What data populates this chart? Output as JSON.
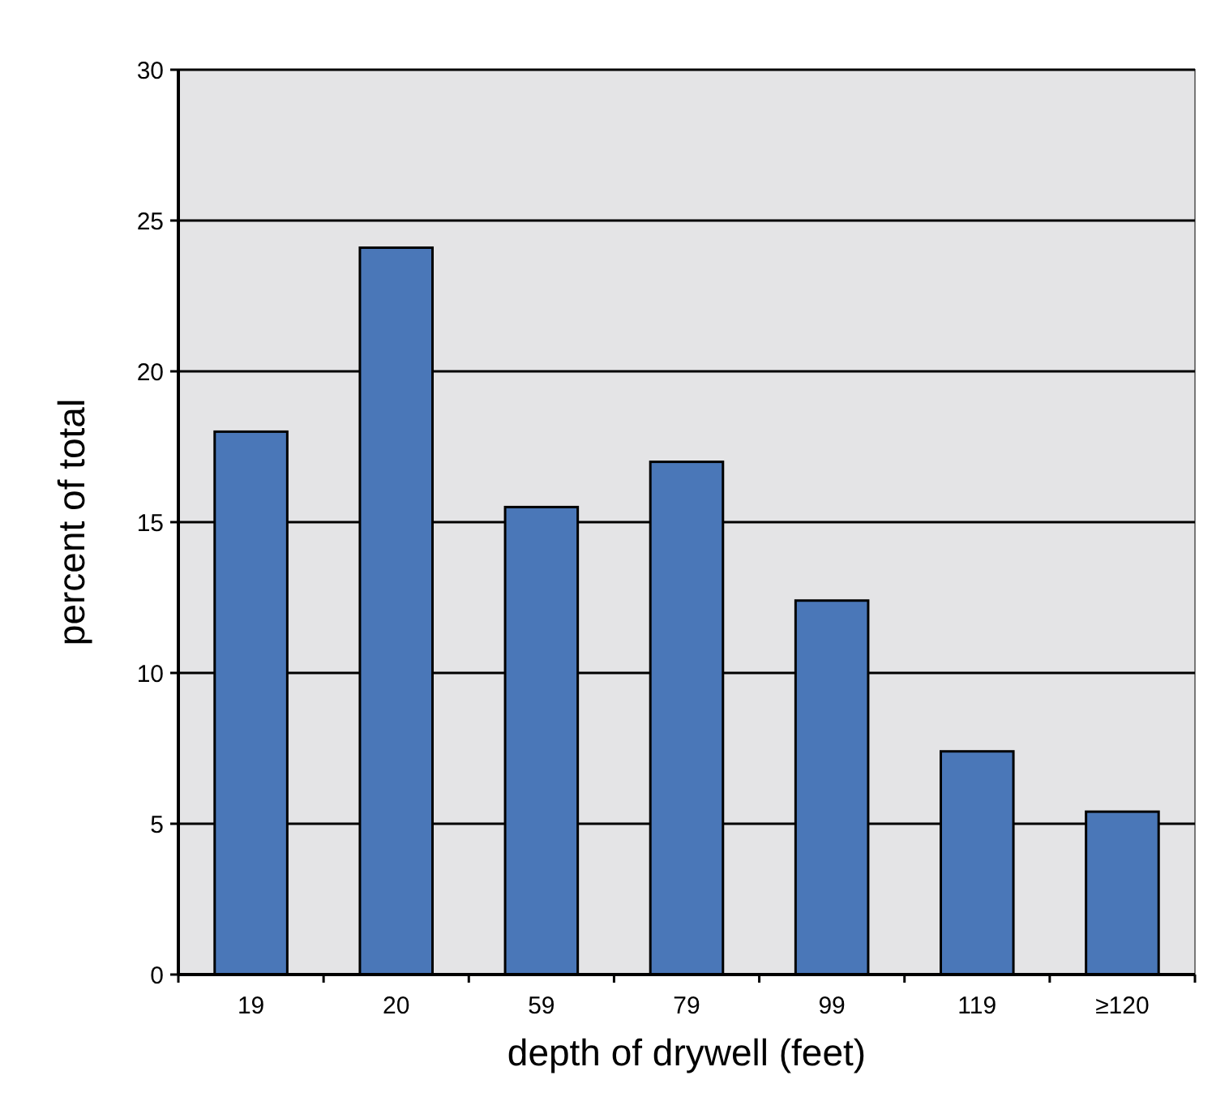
{
  "chart_data": {
    "type": "bar",
    "xlabel": "depth of drywell (feet)",
    "ylabel": "percent of total",
    "categories": [
      "19",
      "20",
      "59",
      "79",
      "99",
      "119",
      "≥120"
    ],
    "values": [
      18,
      24.1,
      15.5,
      17,
      12.4,
      7.4,
      5.4
    ],
    "color": "#4a77b8",
    "ylim": [
      0,
      30
    ],
    "yticks": [
      0,
      5,
      10,
      15,
      20,
      25,
      30
    ],
    "grid": "y"
  }
}
